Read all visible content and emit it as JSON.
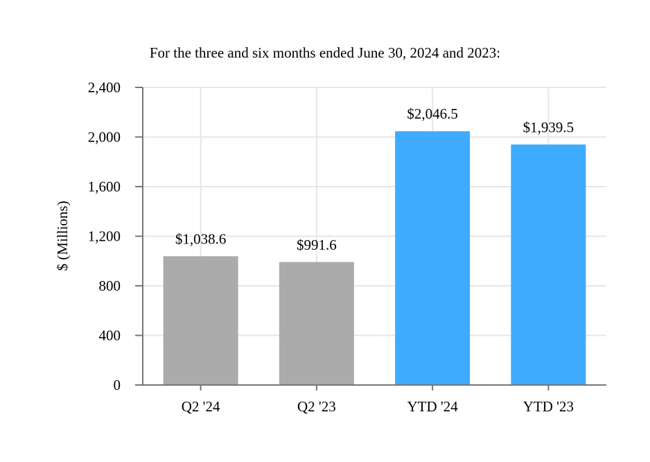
{
  "chart_data": {
    "type": "bar",
    "title": "For the three and six months ended June 30, 2024 and 2023:",
    "xlabel": "",
    "ylabel": "$ (Millions)",
    "ylim": [
      0,
      2400
    ],
    "yticks": [
      0,
      400,
      800,
      1200,
      1600,
      2000,
      2400
    ],
    "ytick_labels": [
      "0",
      "400",
      "800",
      "1,200",
      "1,600",
      "2,000",
      "2,400"
    ],
    "categories": [
      "Q2 '24",
      "Q2 '23",
      "YTD '24",
      "YTD '23"
    ],
    "values": [
      1038.6,
      991.6,
      2046.5,
      1939.5
    ],
    "data_labels": [
      "$1,038.6",
      "$991.6",
      "$2,046.5",
      "$1,939.5"
    ],
    "colors": [
      "#ababab",
      "#ababab",
      "#3fabff",
      "#3fabff"
    ],
    "grid": true,
    "legend": "none"
  }
}
